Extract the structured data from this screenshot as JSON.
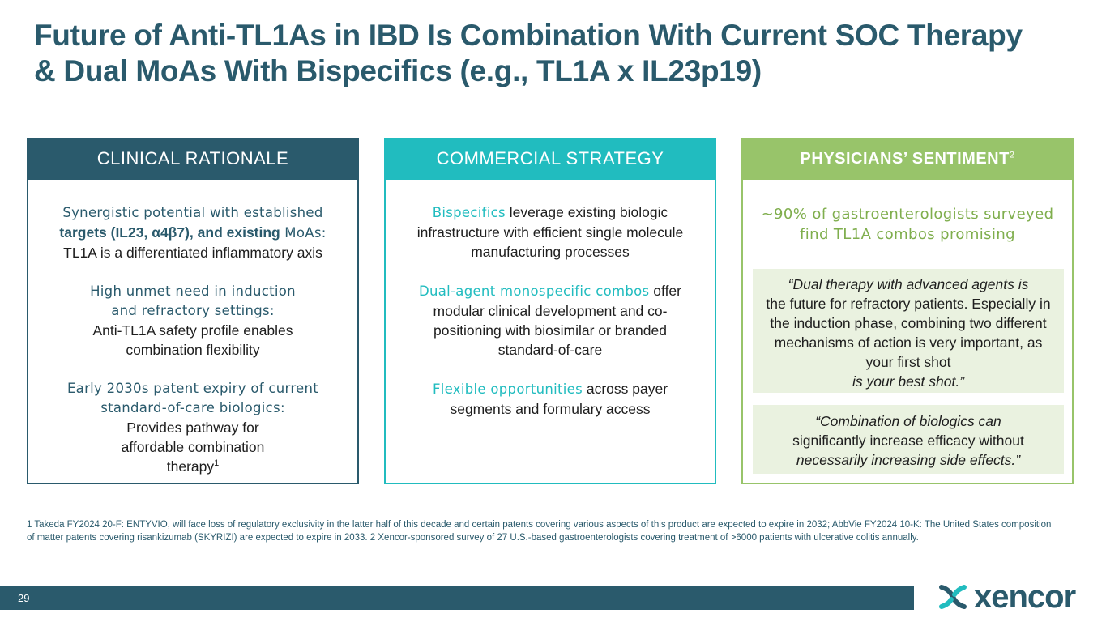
{
  "title_line1": "Future of Anti-TL1As in IBD Is Combination With Current SOC Therapy",
  "title_line2": "& Dual MoAs With Bispecifics (e.g., TL1A x IL23p19)",
  "columns": {
    "clinical": {
      "header": "CLINICAL RATIONALE",
      "p1_hl_a": "Synergistic potential with established",
      "p1_bold": "targets (IL23, α4β7), and existing",
      "p1_hl_b": " MoAs:",
      "p1_text": "TL1A is a differentiated inflammatory axis",
      "p2_hl": "High unmet need in induction and refractory settings:",
      "p2_text": "Anti-TL1A safety profile enables combination flexibility",
      "p3_hl": "Early 2030s patent expiry of current standard-of-care biologics:",
      "p3_text": "Provides pathway for affordable combination therapy",
      "p3_sup": "1"
    },
    "commercial": {
      "header": "COMMERCIAL STRATEGY",
      "p1_hl": "Bispecifics",
      "p1_text": " leverage existing biologic infrastructure with efficient single molecule manufacturing processes",
      "p2_hl": "Dual-agent monospecific combos",
      "p2_text": " offer modular clinical development and co-positioning with biosimilar or branded standard-of-care",
      "p3_hl": "Flexible opportunities",
      "p3_text": " across payer segments and formulary access"
    },
    "physicians": {
      "header": "PHYSICIANS’ SENTIMENT",
      "header_sup": "2",
      "stat": "~90% of gastroenterologists surveyed find TL1A combos promising",
      "quote1_a": "“Dual therapy with advanced agents is",
      "quote1_b": "the future for refractory patients. Especially in the induction phase, combining two different mechanisms of action is very important, as your first shot",
      "quote1_c": "is your best shot.”",
      "quote2_a": "“Combination of biologics can",
      "quote2_b": "significantly increase efficacy without",
      "quote2_c": "necessarily increasing side effects.”"
    }
  },
  "footnote": "1 Takeda FY2024 20-F: ENTYVIO, will face loss of regulatory exclusivity in the latter half of this decade and certain patents covering various aspects of this product are expected to expire in 2032; AbbVie FY2024 10-K: The United States composition of matter patents covering risankizumab (SKYRIZI) are expected to expire in 2033.  2 Xencor-sponsored survey of 27 U.S.-based gastroenterologists covering treatment of >6000 patients with ulcerative colitis annually.",
  "page_number": "29",
  "logo_text": "xencor",
  "colors": {
    "navy": "#2a5a6c",
    "teal": "#21bcbf",
    "green": "#98c46a",
    "quote_bg": "#eaf2e0"
  }
}
